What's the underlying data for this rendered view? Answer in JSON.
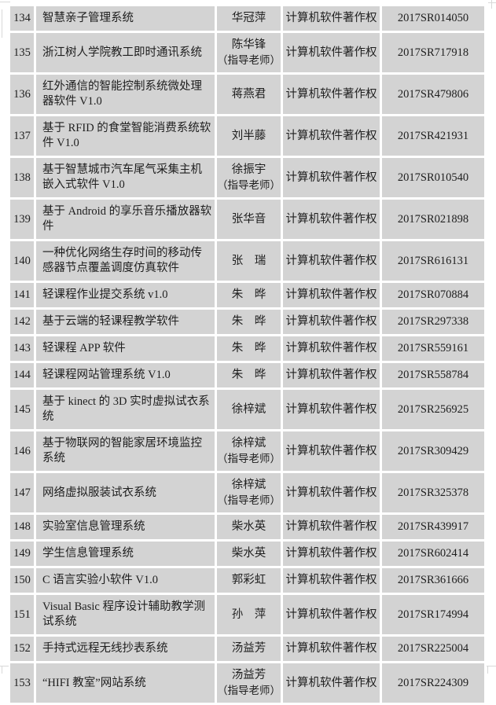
{
  "page": {
    "background_color": "#ffffff",
    "cell_background_color": "#d3d3d3",
    "gridline_color": "#ffffff",
    "text_color": "#1e1e1e"
  },
  "table": {
    "rows": [
      {
        "num": "134",
        "name": "智慧亲子管理系统",
        "author": "华冠萍",
        "author_note": "",
        "type": "计算机软件著作权",
        "regno": "2017SR014050"
      },
      {
        "num": "135",
        "name": "浙江树人学院教工即时通讯系统",
        "author": "陈华锋",
        "author_note": "（指导老师）",
        "type": "计算机软件著作权",
        "regno": "2017SR717918"
      },
      {
        "num": "136",
        "name": "红外通信的智能控制系统微处理器软件 V1.0",
        "author": "蒋燕君",
        "author_note": "",
        "type": "计算机软件著作权",
        "regno": "2017SR479806"
      },
      {
        "num": "137",
        "name": "基于 RFID 的食堂智能消费系统软件 V1.0",
        "author": "刘半藤",
        "author_note": "",
        "type": "计算机软件著作权",
        "regno": "2017SR421931"
      },
      {
        "num": "138",
        "name": "基于智慧城市汽车尾气采集主机嵌入式软件 V1.0",
        "author": "徐振宇",
        "author_note": "（指导老师）",
        "type": "计算机软件著作权",
        "regno": "2017SR010540"
      },
      {
        "num": "139",
        "name": "基于 Android 的享乐音乐播放器软件",
        "author": "张华音",
        "author_note": "",
        "type": "计算机软件著作权",
        "regno": "2017SR021898"
      },
      {
        "num": "140",
        "name": "一种优化网络生存时间的移动传感器节点覆盖调度仿真软件",
        "author": "张　瑞",
        "author_note": "",
        "type": "计算机软件著作权",
        "regno": "2017SR616131"
      },
      {
        "num": "141",
        "name": "轻课程作业提交系统 v1.0",
        "author": "朱　晔",
        "author_note": "",
        "type": "计算机软件著作权",
        "regno": "2017SR070884"
      },
      {
        "num": "142",
        "name": "基于云端的轻课程教学软件",
        "author": "朱　晔",
        "author_note": "",
        "type": "计算机软件著作权",
        "regno": "2017SR297338"
      },
      {
        "num": "143",
        "name": "轻课程 APP 软件",
        "author": "朱　晔",
        "author_note": "",
        "type": "计算机软件著作权",
        "regno": "2017SR559161"
      },
      {
        "num": "144",
        "name": "轻课程网站管理系统 V1.0",
        "author": "朱　晔",
        "author_note": "",
        "type": "计算机软件著作权",
        "regno": "2017SR558784"
      },
      {
        "num": "145",
        "name": "基于 kinect 的 3D 实时虚拟试衣系统",
        "author": "徐梓斌",
        "author_note": "",
        "type": "计算机软件著作权",
        "regno": "2017SR256925"
      },
      {
        "num": "146",
        "name": "基于物联网的智能家居环境监控系统",
        "author": "徐梓斌",
        "author_note": "（指导老师）",
        "type": "计算机软件著作权",
        "regno": "2017SR309429"
      },
      {
        "num": "147",
        "name": "网络虚拟服装试衣系统",
        "author": "徐梓斌",
        "author_note": "（指导老师）",
        "type": "计算机软件著作权",
        "regno": "2017SR325378"
      },
      {
        "num": "148",
        "name": "实验室信息管理系统",
        "author": "柴水英",
        "author_note": "",
        "type": "计算机软件著作权",
        "regno": "2017SR439917"
      },
      {
        "num": "149",
        "name": "学生信息管理系统",
        "author": "柴水英",
        "author_note": "",
        "type": "计算机软件著作权",
        "regno": "2017SR602414"
      },
      {
        "num": "150",
        "name": "C 语言实验小软件 V1.0",
        "author": "郭彩虹",
        "author_note": "",
        "type": "计算机软件著作权",
        "regno": "2017SR361666"
      },
      {
        "num": "151",
        "name": "Visual Basic 程序设计辅助教学测试系统",
        "author": "孙　萍",
        "author_note": "",
        "type": "计算机软件著作权",
        "regno": "2017SR174994"
      },
      {
        "num": "152",
        "name": "手持式远程无线抄表系统",
        "author": "汤益芳",
        "author_note": "",
        "type": "计算机软件著作权",
        "regno": "2017SR225004"
      },
      {
        "num": "153",
        "name": "“HIFI 教室”网站系统",
        "author": "汤益芳",
        "author_note": "（指导老师）",
        "type": "计算机软件著作权",
        "regno": "2017SR224309"
      }
    ]
  }
}
